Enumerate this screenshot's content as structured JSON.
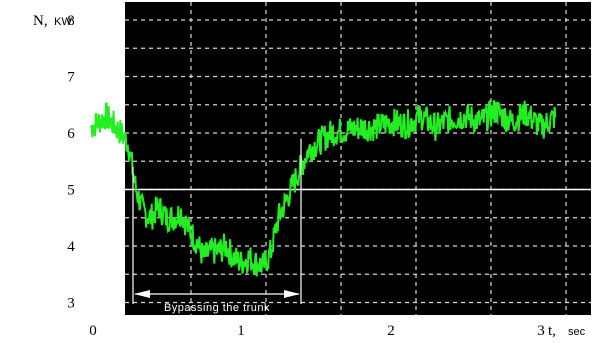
{
  "chart_data": {
    "type": "line",
    "title": "",
    "ylabel": "N,",
    "ylabel_unit": "KW",
    "xlabel": "t,",
    "xlabel_unit": "sec",
    "x_origin_label": "0",
    "xlim": [
      0,
      3.13
    ],
    "ylim": [
      2.8,
      8
    ],
    "x_ticks": [
      "1",
      "2",
      "3"
    ],
    "y_ticks": [
      "3",
      "4",
      "5",
      "6",
      "7",
      "8"
    ],
    "grid": true,
    "background": "#000000",
    "series": [
      {
        "color": "#22ee22",
        "x": [
          0.0,
          0.1,
          0.2,
          0.25,
          0.3,
          0.35,
          0.4,
          0.45,
          0.5,
          0.55,
          0.6,
          0.65,
          0.7,
          0.75,
          0.8,
          0.85,
          0.9,
          0.95,
          1.0,
          1.05,
          1.1,
          1.15,
          1.2,
          1.25,
          1.3,
          1.35,
          1.4,
          1.45,
          1.5,
          1.55,
          1.6,
          1.7,
          1.8,
          1.9,
          2.0,
          2.1,
          2.2,
          2.3,
          2.4,
          2.5,
          2.6,
          2.7,
          2.8,
          2.9,
          3.0,
          3.1
        ],
        "y": [
          6.1,
          6.3,
          6.0,
          5.8,
          5.0,
          4.6,
          4.5,
          4.7,
          4.5,
          4.5,
          4.6,
          4.3,
          4.1,
          3.8,
          3.9,
          3.9,
          4.0,
          3.8,
          3.7,
          3.8,
          3.7,
          3.65,
          3.9,
          4.5,
          4.8,
          5.1,
          5.4,
          5.7,
          5.8,
          5.9,
          6.0,
          6.05,
          6.1,
          6.1,
          6.2,
          6.15,
          6.3,
          6.1,
          6.25,
          6.3,
          6.2,
          6.4,
          6.2,
          6.35,
          6.1,
          6.3
        ]
      }
    ],
    "reference_line": {
      "y": 5.0,
      "color": "#ffffff"
    },
    "annotations": [
      {
        "text": "Bypassing the trunk",
        "x_start": 0.28,
        "x_end": 1.4,
        "y": 3.15
      }
    ]
  }
}
